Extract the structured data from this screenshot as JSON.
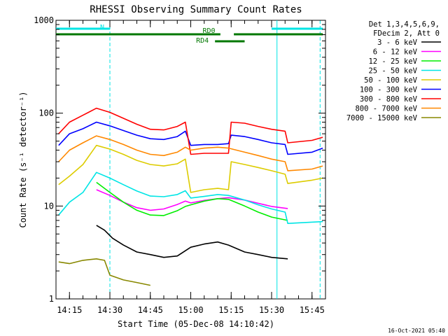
{
  "chart_data": {
    "type": "line",
    "title": "RHESSI Observing Summary Count Rates",
    "xlabel": "Start Time (05-Dec-08 14:10:42)",
    "ylabel": "Count Rate (s⁻¹ detector⁻¹)",
    "ylim": [
      1,
      1000
    ],
    "yscale": "log",
    "xlim": [
      "14:10",
      "15:50"
    ],
    "x_ticks": [
      "14:15",
      "14:30",
      "14:45",
      "15:00",
      "15:15",
      "15:30",
      "15:45"
    ],
    "y_ticks": [
      "1",
      "10",
      "100",
      "1000"
    ],
    "timestamp": "16-Oct-2021 05:40",
    "legend": {
      "placement": "right",
      "header": [
        "Det 1,3,4,5,6,9,",
        "FDecim 2, Att 0"
      ]
    },
    "flags": [
      {
        "label": "N",
        "color": "#00e5e5",
        "segments": [
          [
            "14:10",
            "14:30"
          ],
          [
            "15:30",
            "15:49"
          ]
        ]
      },
      {
        "label": "RD0",
        "color": "#007700",
        "segments": [
          [
            "14:10",
            "15:11"
          ],
          [
            "15:16",
            "15:49"
          ]
        ]
      },
      {
        "label": "RD4",
        "color": "#007700",
        "segments": [
          [
            "15:09",
            "15:20"
          ]
        ]
      }
    ],
    "vlines": [
      {
        "t": "14:30",
        "color": "#00e5e5",
        "style": "dashed"
      },
      {
        "t": "15:32",
        "color": "#00e5e5",
        "style": "solid"
      },
      {
        "t": "15:48",
        "color": "#00e5e5",
        "style": "dashed"
      }
    ],
    "series": [
      {
        "name": "3 - 6 keV",
        "color": "#000000",
        "points": [
          [
            "14:25",
            6.2
          ],
          [
            "14:28",
            5.5
          ],
          [
            "14:31",
            4.5
          ],
          [
            "14:35",
            3.8
          ],
          [
            "14:40",
            3.2
          ],
          [
            "14:45",
            3.0
          ],
          [
            "14:50",
            2.8
          ],
          [
            "14:55",
            2.9
          ],
          [
            "15:00",
            3.6
          ],
          [
            "15:05",
            3.9
          ],
          [
            "15:10",
            4.1
          ],
          [
            "15:14",
            3.8
          ],
          [
            "15:20",
            3.2
          ],
          [
            "15:25",
            3.0
          ],
          [
            "15:30",
            2.8
          ],
          [
            "15:36",
            2.7
          ]
        ]
      },
      {
        "name": "6 - 12 keV",
        "color": "#ff00ff",
        "points": [
          [
            "14:25",
            15
          ],
          [
            "14:30",
            13
          ],
          [
            "14:35",
            11
          ],
          [
            "14:40",
            9.6
          ],
          [
            "14:45",
            9.0
          ],
          [
            "14:50",
            9.3
          ],
          [
            "14:55",
            10.4
          ],
          [
            "14:58",
            11.3
          ],
          [
            "15:00",
            10.8
          ],
          [
            "15:05",
            11.5
          ],
          [
            "15:10",
            12
          ],
          [
            "15:14",
            12.3
          ],
          [
            "15:20",
            11.6
          ],
          [
            "15:25",
            10.7
          ],
          [
            "15:30",
            9.9
          ],
          [
            "15:36",
            9.4
          ]
        ]
      },
      {
        "name": "12 - 25 keV",
        "color": "#00ee00",
        "points": [
          [
            "14:25",
            18
          ],
          [
            "14:30",
            14
          ],
          [
            "14:35",
            11
          ],
          [
            "14:40",
            9.0
          ],
          [
            "14:45",
            8.0
          ],
          [
            "14:50",
            7.9
          ],
          [
            "14:55",
            8.9
          ],
          [
            "14:58",
            9.9
          ],
          [
            "15:00",
            10.3
          ],
          [
            "15:05",
            11.3
          ],
          [
            "15:10",
            12.0
          ],
          [
            "15:14",
            11.8
          ],
          [
            "15:20",
            10.0
          ],
          [
            "15:25",
            8.6
          ],
          [
            "15:30",
            7.6
          ],
          [
            "15:36",
            7.0
          ]
        ]
      },
      {
        "name": "25 - 50 keV",
        "color": "#00e5e5",
        "points": [
          [
            "14:11",
            8
          ],
          [
            "14:15",
            11
          ],
          [
            "14:20",
            14
          ],
          [
            "14:25",
            23
          ],
          [
            "14:30",
            20
          ],
          [
            "14:35",
            17
          ],
          [
            "14:40",
            14.5
          ],
          [
            "14:45",
            12.8
          ],
          [
            "14:50",
            12.6
          ],
          [
            "14:55",
            13.3
          ],
          [
            "14:58",
            14.6
          ],
          [
            "15:00",
            12.2
          ],
          [
            "15:05",
            12.7
          ],
          [
            "15:10",
            13.3
          ],
          [
            "15:14",
            13.0
          ],
          [
            "15:20",
            11.6
          ],
          [
            "15:25",
            10.3
          ],
          [
            "15:30",
            9.3
          ],
          [
            "15:35",
            8.6
          ],
          [
            "15:36",
            6.5
          ],
          [
            "15:49",
            6.8
          ]
        ]
      },
      {
        "name": "50 - 100 keV",
        "color": "#ddcc00",
        "points": [
          [
            "14:11",
            17
          ],
          [
            "14:15",
            21
          ],
          [
            "14:20",
            28
          ],
          [
            "14:25",
            45
          ],
          [
            "14:30",
            41
          ],
          [
            "14:35",
            36
          ],
          [
            "14:40",
            31
          ],
          [
            "14:45",
            28
          ],
          [
            "14:50",
            27
          ],
          [
            "14:55",
            28.5
          ],
          [
            "14:58",
            32
          ],
          [
            "15:00",
            14
          ],
          [
            "15:05",
            15
          ],
          [
            "15:10",
            15.5
          ],
          [
            "15:14",
            15
          ],
          [
            "15:15",
            30
          ],
          [
            "15:20",
            28
          ],
          [
            "15:25",
            26
          ],
          [
            "15:30",
            24
          ],
          [
            "15:35",
            22
          ],
          [
            "15:36",
            17.5
          ],
          [
            "15:45",
            19
          ],
          [
            "15:49",
            20
          ]
        ]
      },
      {
        "name": "100 - 300 keV",
        "color": "#0000ff",
        "points": [
          [
            "14:11",
            45
          ],
          [
            "14:15",
            60
          ],
          [
            "14:20",
            68
          ],
          [
            "14:25",
            80
          ],
          [
            "14:30",
            73
          ],
          [
            "14:35",
            65
          ],
          [
            "14:40",
            58
          ],
          [
            "14:45",
            53
          ],
          [
            "14:50",
            52
          ],
          [
            "14:55",
            56
          ],
          [
            "14:58",
            64
          ],
          [
            "15:00",
            45
          ],
          [
            "15:05",
            46
          ],
          [
            "15:10",
            46
          ],
          [
            "15:14",
            47
          ],
          [
            "15:15",
            58
          ],
          [
            "15:20",
            56
          ],
          [
            "15:25",
            52
          ],
          [
            "15:30",
            48
          ],
          [
            "15:35",
            46
          ],
          [
            "15:36",
            36
          ],
          [
            "15:45",
            38
          ],
          [
            "15:49",
            42
          ]
        ]
      },
      {
        "name": "300 - 800 keV",
        "color": "#ff0000",
        "points": [
          [
            "14:11",
            60
          ],
          [
            "14:15",
            80
          ],
          [
            "14:20",
            95
          ],
          [
            "14:25",
            113
          ],
          [
            "14:30",
            102
          ],
          [
            "14:35",
            88
          ],
          [
            "14:40",
            76
          ],
          [
            "14:45",
            67
          ],
          [
            "14:50",
            66
          ],
          [
            "14:55",
            72
          ],
          [
            "14:58",
            80
          ],
          [
            "15:00",
            36
          ],
          [
            "15:05",
            37
          ],
          [
            "15:10",
            37
          ],
          [
            "15:14",
            37
          ],
          [
            "15:15",
            80
          ],
          [
            "15:20",
            78
          ],
          [
            "15:25",
            72
          ],
          [
            "15:30",
            67
          ],
          [
            "15:35",
            64
          ],
          [
            "15:36",
            48
          ],
          [
            "15:45",
            51
          ],
          [
            "15:49",
            55
          ]
        ]
      },
      {
        "name": "800 - 7000 keV",
        "color": "#ff8800",
        "points": [
          [
            "14:11",
            30
          ],
          [
            "14:15",
            40
          ],
          [
            "14:20",
            48
          ],
          [
            "14:25",
            57
          ],
          [
            "14:30",
            52
          ],
          [
            "14:35",
            46
          ],
          [
            "14:40",
            40
          ],
          [
            "14:45",
            36
          ],
          [
            "14:50",
            35
          ],
          [
            "14:55",
            38
          ],
          [
            "14:58",
            43
          ],
          [
            "15:00",
            40
          ],
          [
            "15:05",
            42
          ],
          [
            "15:10",
            43
          ],
          [
            "15:14",
            42
          ],
          [
            "15:20",
            38
          ],
          [
            "15:25",
            35
          ],
          [
            "15:30",
            32
          ],
          [
            "15:35",
            30
          ],
          [
            "15:36",
            24
          ],
          [
            "15:45",
            25
          ],
          [
            "15:49",
            27
          ]
        ]
      },
      {
        "name": "7000 - 15000 keV",
        "color": "#888800",
        "points": [
          [
            "14:11",
            2.5
          ],
          [
            "14:15",
            2.4
          ],
          [
            "14:20",
            2.6
          ],
          [
            "14:25",
            2.7
          ],
          [
            "14:28",
            2.6
          ],
          [
            "14:30",
            1.8
          ],
          [
            "14:35",
            1.6
          ],
          [
            "14:40",
            1.5
          ],
          [
            "14:45",
            1.4
          ]
        ]
      }
    ]
  }
}
